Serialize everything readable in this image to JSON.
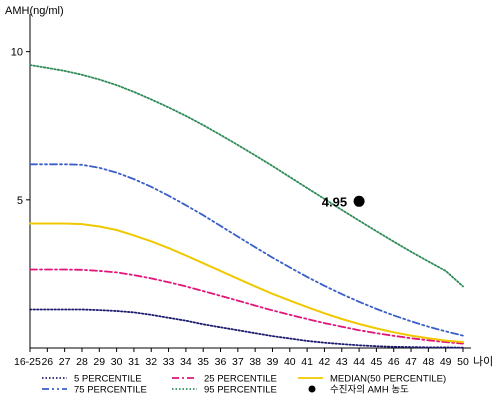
{
  "chart_data": {
    "type": "line",
    "ylabel": "AMH(ng/ml)",
    "xlabel": "나이",
    "categories": [
      "16-25",
      "26",
      "27",
      "28",
      "29",
      "30",
      "31",
      "32",
      "33",
      "34",
      "35",
      "36",
      "37",
      "38",
      "39",
      "40",
      "41",
      "42",
      "43",
      "44",
      "45",
      "46",
      "47",
      "48",
      "49",
      "50"
    ],
    "yticks": [
      5,
      10
    ],
    "ylim": [
      0,
      11
    ],
    "grid": false,
    "series": [
      {
        "name": "5 PERCENTILE",
        "color": "#1a1a6e",
        "dash": "dotted",
        "values": [
          1.3,
          1.3,
          1.3,
          1.3,
          1.28,
          1.25,
          1.2,
          1.12,
          1.02,
          0.92,
          0.8,
          0.7,
          0.6,
          0.5,
          0.4,
          0.32,
          0.24,
          0.18,
          0.13,
          0.09,
          0.06,
          0.04,
          0.03,
          0.02,
          0.02,
          0.01
        ]
      },
      {
        "name": "25 PERCENTILE",
        "color": "#e0157a",
        "dash": "dashdot",
        "values": [
          2.65,
          2.65,
          2.65,
          2.64,
          2.6,
          2.55,
          2.46,
          2.35,
          2.22,
          2.08,
          1.92,
          1.76,
          1.6,
          1.43,
          1.27,
          1.12,
          0.98,
          0.84,
          0.72,
          0.6,
          0.5,
          0.41,
          0.33,
          0.26,
          0.2,
          0.15
        ]
      },
      {
        "name": "MEDIAN(50 PERCENTILE)",
        "color": "#f0c800",
        "dash": "solid",
        "values": [
          4.2,
          4.2,
          4.2,
          4.18,
          4.1,
          3.98,
          3.8,
          3.6,
          3.37,
          3.12,
          2.86,
          2.6,
          2.34,
          2.08,
          1.83,
          1.6,
          1.38,
          1.17,
          0.98,
          0.81,
          0.66,
          0.53,
          0.42,
          0.33,
          0.25,
          0.2
        ]
      },
      {
        "name": "75 PERCENTILE",
        "color": "#3a5fc8",
        "dash": "dashdotdot",
        "values": [
          6.2,
          6.2,
          6.2,
          6.18,
          6.08,
          5.92,
          5.7,
          5.44,
          5.14,
          4.82,
          4.48,
          4.12,
          3.76,
          3.4,
          3.05,
          2.72,
          2.4,
          2.1,
          1.82,
          1.56,
          1.32,
          1.1,
          0.9,
          0.72,
          0.56,
          0.42
        ]
      },
      {
        "name": "95 PERCENTILE",
        "color": "#2e8b57",
        "dash": "dotted",
        "values": [
          9.55,
          9.45,
          9.35,
          9.22,
          9.06,
          8.87,
          8.64,
          8.39,
          8.12,
          7.83,
          7.52,
          7.19,
          6.85,
          6.5,
          6.14,
          5.77,
          5.4,
          5.03,
          4.66,
          4.3,
          3.94,
          3.59,
          3.25,
          2.92,
          2.6,
          2.08
        ]
      }
    ],
    "point": {
      "label": "수진자의 AMH 농도",
      "x": "44",
      "value": "4.95",
      "y": 4.95,
      "color": "#000000"
    }
  }
}
